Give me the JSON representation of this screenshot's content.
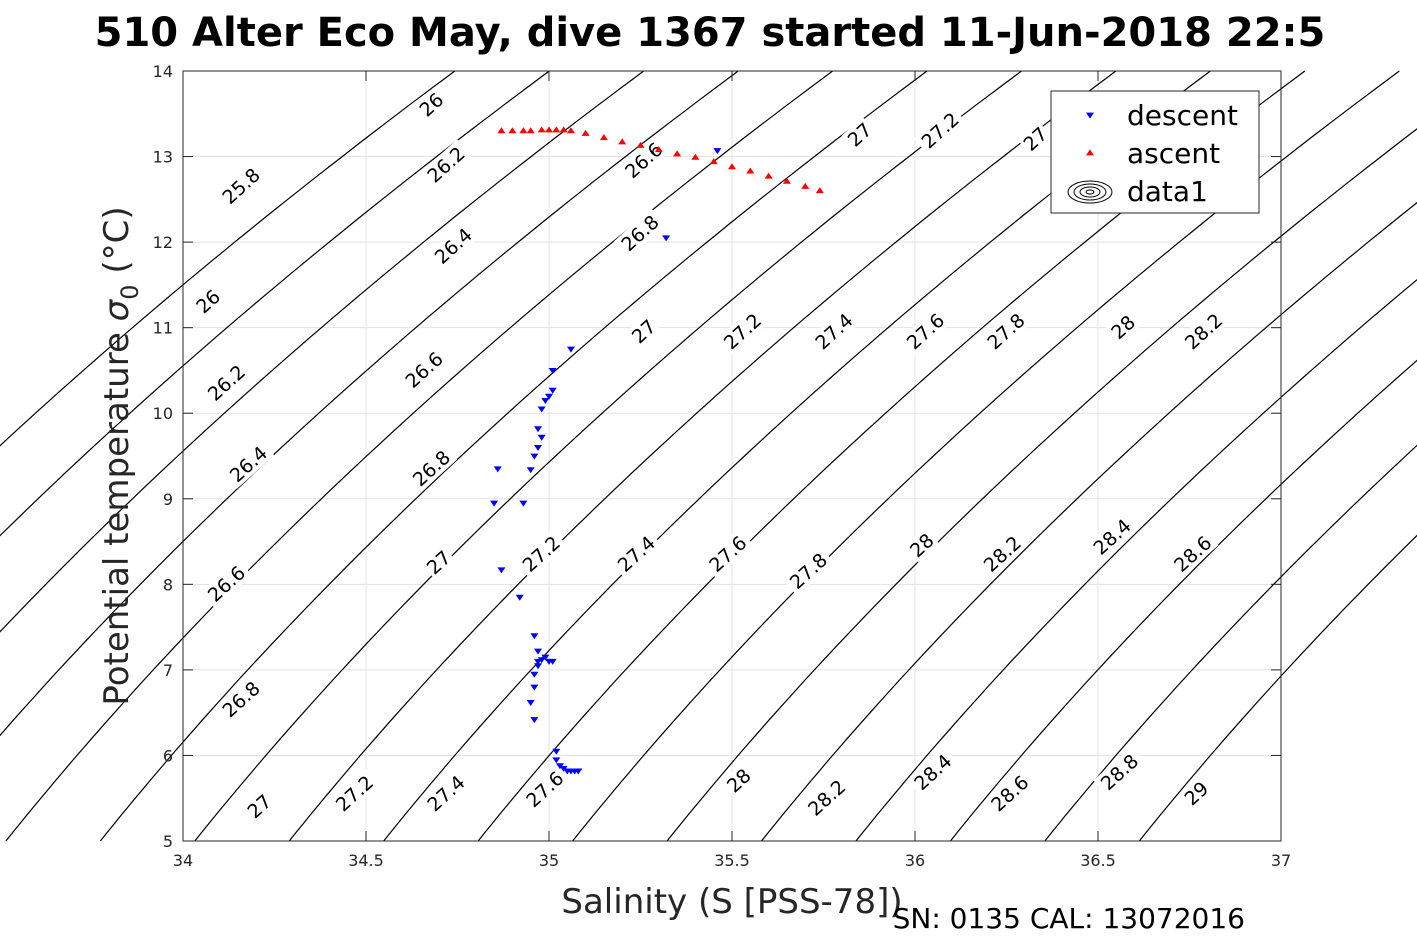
{
  "title": "510 Alter Eco May, dive 1367 started 11-Jun-2018 22:5",
  "footer": "SN: 0135  CAL: 13072016",
  "chart_data": {
    "type": "scatter",
    "xlabel": "Salinity (S [PSS-78])",
    "ylabel_main": "Potential temperature ",
    "ylabel_sigma": "σ",
    "ylabel_sub": "0",
    "ylabel_unit": " (°C)",
    "xlim": [
      34,
      37
    ],
    "ylim": [
      5,
      14
    ],
    "xticks": [
      34,
      34.5,
      35,
      35.5,
      36,
      36.5,
      37
    ],
    "xtick_labels": [
      "34",
      "34.5",
      "35",
      "35.5",
      "36",
      "36.5",
      "37"
    ],
    "yticks": [
      5,
      6,
      7,
      8,
      9,
      10,
      11,
      12,
      13,
      14
    ],
    "ytick_labels": [
      "5",
      "6",
      "7",
      "8",
      "9",
      "10",
      "11",
      "12",
      "13",
      "14"
    ],
    "grid": true,
    "legend": {
      "placement": "top-right",
      "entries": [
        {
          "label": "descent",
          "marker": "triangle-down",
          "color": "#0000ff"
        },
        {
          "label": "ascent",
          "marker": "triangle-up",
          "color": "#ff0000"
        },
        {
          "label": "data1",
          "marker": "contour",
          "color": "#000000"
        }
      ]
    },
    "contour_levels": [
      25.8,
      26,
      26.2,
      26.4,
      26.6,
      26.8,
      27,
      27.2,
      27.4,
      27.6,
      27.8,
      28,
      28.2,
      28.4,
      28.6,
      28.8,
      29
    ],
    "contour_labels": [
      {
        "text": "26",
        "x": 34.68,
        "y": 13.6
      },
      {
        "text": "25.8",
        "x": 34.16,
        "y": 12.65
      },
      {
        "text": "26.2",
        "x": 34.72,
        "y": 12.9
      },
      {
        "text": "26",
        "x": 34.07,
        "y": 11.3
      },
      {
        "text": "26.4",
        "x": 34.74,
        "y": 11.95
      },
      {
        "text": "26.2",
        "x": 34.12,
        "y": 10.35
      },
      {
        "text": "26.6",
        "x": 34.66,
        "y": 10.5
      },
      {
        "text": "26.4",
        "x": 34.18,
        "y": 9.4
      },
      {
        "text": "26.8",
        "x": 34.68,
        "y": 9.35
      },
      {
        "text": "26.6",
        "x": 34.12,
        "y": 8.0
      },
      {
        "text": "27",
        "x": 34.7,
        "y": 8.25
      },
      {
        "text": "26.8",
        "x": 34.16,
        "y": 6.65
      },
      {
        "text": "27",
        "x": 34.21,
        "y": 5.4
      },
      {
        "text": "27.2",
        "x": 34.47,
        "y": 5.55
      },
      {
        "text": "27.4",
        "x": 34.72,
        "y": 5.55
      },
      {
        "text": "27.2",
        "x": 34.98,
        "y": 8.35
      },
      {
        "text": "27.6",
        "x": 34.99,
        "y": 5.6
      },
      {
        "text": "27.4",
        "x": 35.24,
        "y": 8.35
      },
      {
        "text": "27.6",
        "x": 35.49,
        "y": 8.35
      },
      {
        "text": "27.8",
        "x": 35.71,
        "y": 8.15
      },
      {
        "text": "28",
        "x": 35.52,
        "y": 5.7
      },
      {
        "text": "28.2",
        "x": 35.76,
        "y": 5.5
      },
      {
        "text": "28",
        "x": 36.02,
        "y": 8.45
      },
      {
        "text": "28.2",
        "x": 36.24,
        "y": 8.35
      },
      {
        "text": "28.4",
        "x": 36.05,
        "y": 5.8
      },
      {
        "text": "28.6",
        "x": 36.26,
        "y": 5.55
      },
      {
        "text": "28.4",
        "x": 36.54,
        "y": 8.55
      },
      {
        "text": "28.6",
        "x": 36.76,
        "y": 8.35
      },
      {
        "text": "28.8",
        "x": 36.56,
        "y": 5.8
      },
      {
        "text": "29",
        "x": 36.77,
        "y": 5.55
      },
      {
        "text": "26.6",
        "x": 35.26,
        "y": 12.95
      },
      {
        "text": "26.8",
        "x": 35.25,
        "y": 12.1
      },
      {
        "text": "27",
        "x": 35.26,
        "y": 10.95
      },
      {
        "text": "27.2",
        "x": 35.53,
        "y": 10.95
      },
      {
        "text": "27",
        "x": 35.85,
        "y": 13.25
      },
      {
        "text": "27.4",
        "x": 35.78,
        "y": 10.95
      },
      {
        "text": "27.2",
        "x": 36.07,
        "y": 13.3
      },
      {
        "text": "27.6",
        "x": 36.03,
        "y": 10.95
      },
      {
        "text": "27.8",
        "x": 36.25,
        "y": 10.95
      },
      {
        "text": "28",
        "x": 36.57,
        "y": 11.0
      },
      {
        "text": "28.2",
        "x": 36.79,
        "y": 10.95
      },
      {
        "text": "27",
        "x": 36.33,
        "y": 13.2
      }
    ],
    "series": [
      {
        "name": "descent",
        "marker": "triangle-down",
        "color": "#0000ff",
        "x": [
          35.46,
          35.32,
          35.06,
          35.01,
          35.01,
          35.0,
          34.99,
          34.98,
          34.97,
          34.98,
          34.97,
          34.96,
          34.95,
          34.93,
          34.86,
          34.85,
          34.87,
          34.92,
          34.96,
          34.97,
          34.98,
          34.97,
          34.96,
          34.96,
          34.95,
          34.96,
          34.97,
          34.99,
          35.0,
          35.01,
          35.02,
          35.02,
          35.03,
          35.04,
          35.05,
          35.06,
          35.07,
          35.08
        ],
        "y": [
          13.07,
          12.05,
          10.75,
          10.5,
          10.27,
          10.2,
          10.15,
          10.05,
          9.82,
          9.72,
          9.6,
          9.5,
          9.34,
          8.95,
          9.35,
          8.95,
          8.17,
          7.85,
          7.4,
          7.22,
          7.12,
          7.05,
          6.95,
          6.8,
          6.62,
          6.42,
          7.1,
          7.15,
          7.1,
          7.1,
          6.05,
          5.95,
          5.88,
          5.85,
          5.82,
          5.82,
          5.82,
          5.82
        ]
      },
      {
        "name": "ascent",
        "marker": "triangle-up",
        "color": "#ff0000",
        "x": [
          35.74,
          35.7,
          35.65,
          35.6,
          35.55,
          35.5,
          35.45,
          35.4,
          35.35,
          35.3,
          35.25,
          35.2,
          35.15,
          35.1,
          35.06,
          35.04,
          35.02,
          35.0,
          34.98,
          34.95,
          34.93,
          34.9,
          34.87
        ],
        "y": [
          12.6,
          12.65,
          12.71,
          12.77,
          12.83,
          12.88,
          12.94,
          12.99,
          13.03,
          13.08,
          13.13,
          13.17,
          13.22,
          13.27,
          13.3,
          13.31,
          13.31,
          13.31,
          13.31,
          13.3,
          13.3,
          13.3,
          13.3
        ]
      }
    ]
  }
}
